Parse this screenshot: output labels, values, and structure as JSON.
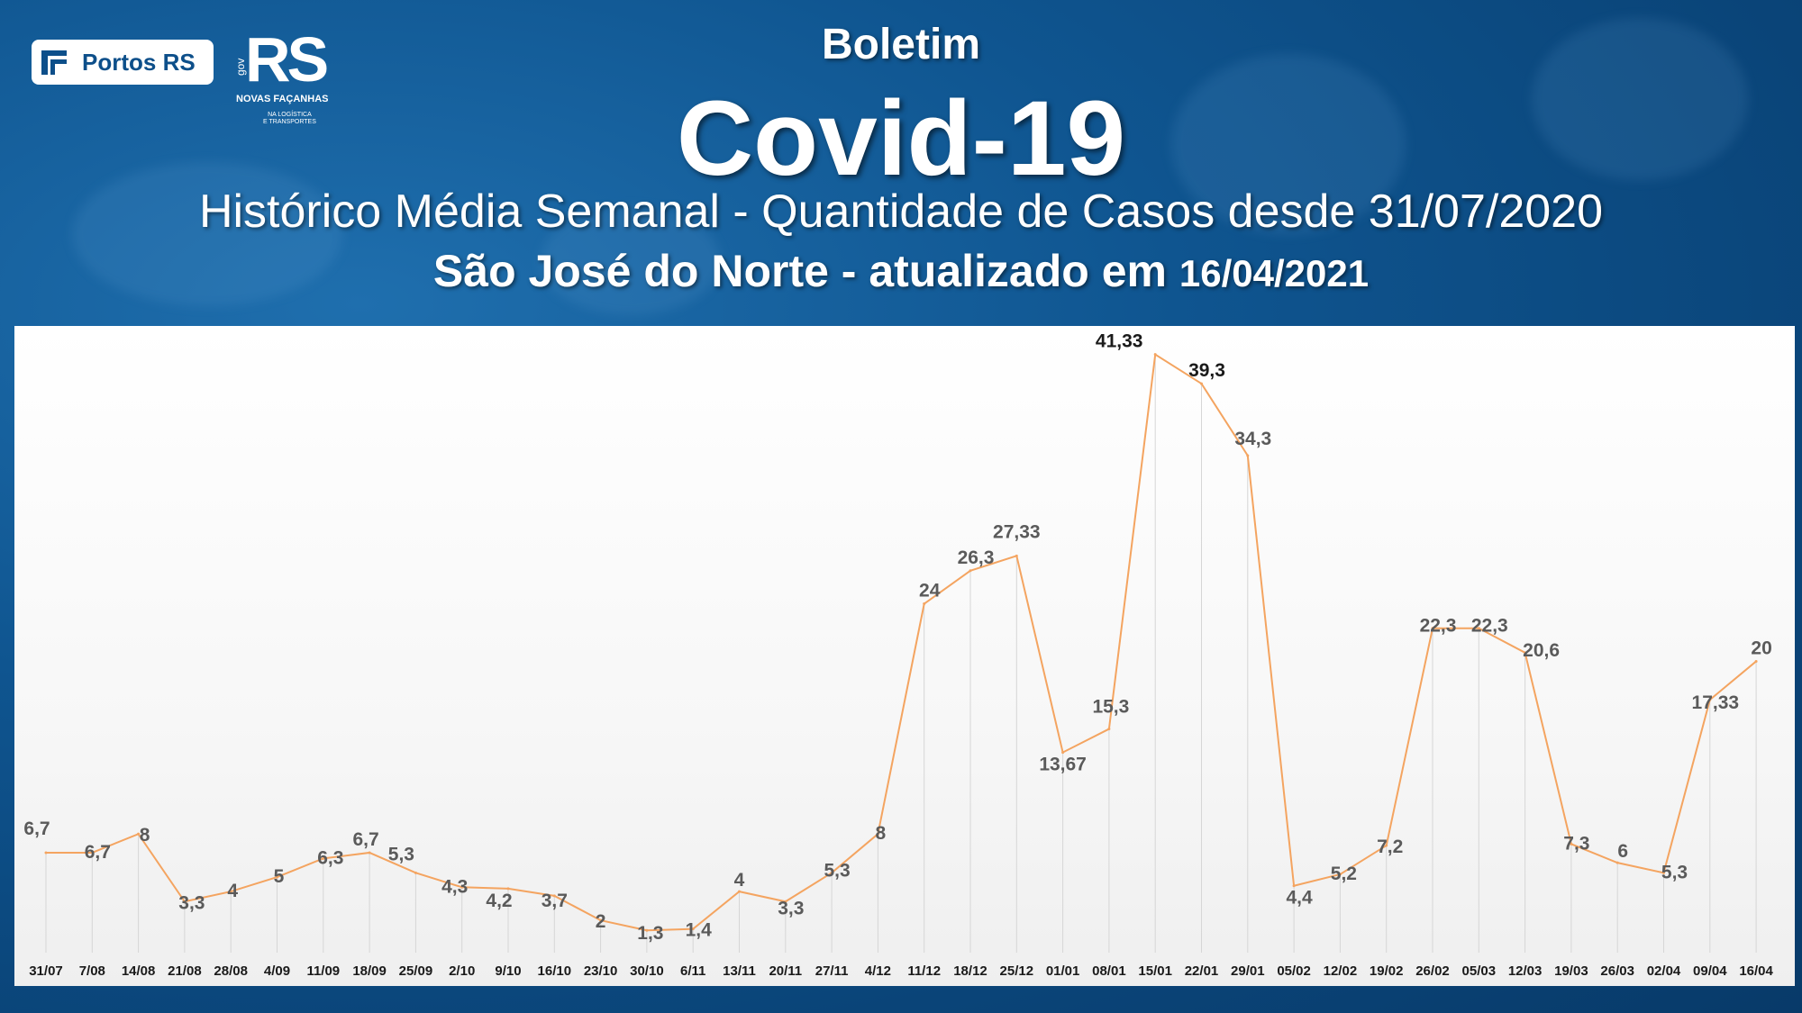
{
  "header": {
    "line1": "Boletim",
    "line2": "Covid-19",
    "line3": "Histórico Média Semanal - Quantidade de Casos desde 31/07/2020",
    "line4_text": "São José do Norte - atualizado em",
    "line4_date": "16/04/2021"
  },
  "logos": {
    "portos": "Portos RS",
    "rs_gov": "gov",
    "rs_big": "RS",
    "rs_tagline": "NOVAS FAÇANHAS",
    "rs_small1": "NA LOGÍSTICA",
    "rs_small2": "E TRANSPORTES"
  },
  "colors": {
    "line": "#f4a460",
    "background": "#0f5590"
  },
  "chart_data": {
    "type": "line",
    "title": "",
    "xlabel": "",
    "ylabel": "",
    "ylim": [
      0,
      45
    ],
    "grid": "vertical",
    "legend": "none",
    "categories": [
      "31/07",
      "7/08",
      "14/08",
      "21/08",
      "28/08",
      "4/09",
      "11/09",
      "18/09",
      "25/09",
      "2/10",
      "9/10",
      "16/10",
      "23/10",
      "30/10",
      "6/11",
      "13/11",
      "20/11",
      "27/11",
      "4/12",
      "11/12",
      "18/12",
      "25/12",
      "01/01",
      "08/01",
      "15/01",
      "22/01",
      "29/01",
      "05/02",
      "12/02",
      "19/02",
      "26/02",
      "05/03",
      "12/03",
      "19/03",
      "26/03",
      "02/04",
      "09/04",
      "16/04"
    ],
    "values": [
      6.7,
      6.7,
      8,
      3.3,
      4,
      5,
      6.3,
      6.7,
      5.3,
      4.3,
      4.2,
      3.7,
      2,
      1.3,
      1.4,
      4,
      3.3,
      5.3,
      8,
      24,
      26.3,
      27.33,
      13.67,
      15.3,
      41.33,
      39.3,
      34.3,
      4.4,
      5.2,
      7.2,
      22.3,
      22.3,
      20.6,
      7.3,
      6,
      5.3,
      17.33,
      20
    ],
    "labels": [
      "6,7",
      "6,7",
      "8",
      "3,3",
      "4",
      "5",
      "6,3",
      "6,7",
      "5,3",
      "4,3",
      "4,2",
      "3,7",
      "2",
      "1,3",
      "1,4",
      "4",
      "3,3",
      "5,3",
      "8",
      "24",
      "26,3",
      "27,33",
      "13,67",
      "15,3",
      "41,33",
      "39,3",
      "34,3",
      "4,4",
      "5,2",
      "7,2",
      "22,3",
      "22,3",
      "20,6",
      "7,3",
      "6",
      "5,3",
      "17,33",
      "20"
    ]
  }
}
